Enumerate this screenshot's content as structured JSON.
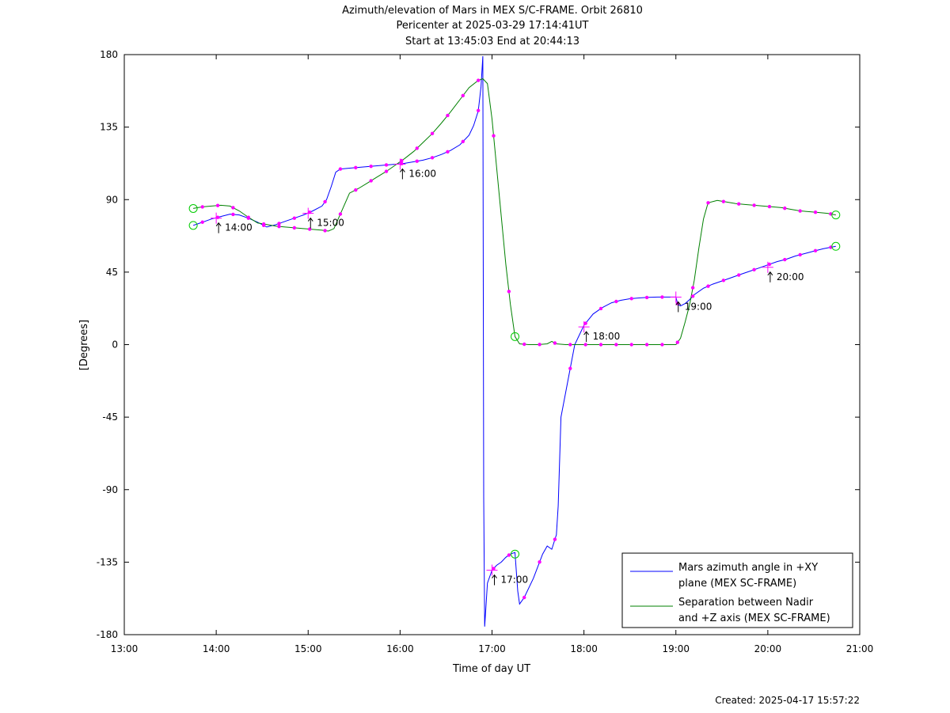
{
  "chart_data": {
    "type": "line",
    "title_lines": [
      "Azimuth/elevation of Mars in MEX S/C-FRAME.  Orbit 26810",
      "Pericenter at 2025-03-29 17:14:41UT",
      "Start at 13:45:03 End at 20:44:13"
    ],
    "xlabel": "Time of day UT",
    "ylabel": "[Degrees]",
    "xlim": [
      13.0,
      21.0
    ],
    "ylim": [
      -180,
      180
    ],
    "x_ticks": [
      13,
      14,
      15,
      16,
      17,
      18,
      19,
      20,
      21
    ],
    "x_tick_labels": [
      "13:00",
      "14:00",
      "15:00",
      "16:00",
      "17:00",
      "18:00",
      "19:00",
      "20:00",
      "21:00"
    ],
    "y_ticks": [
      180,
      135,
      90,
      45,
      0,
      -45,
      -90,
      -135,
      -180
    ],
    "y_tick_labels": [
      "180",
      "135",
      "90",
      "45",
      "0",
      "-45",
      "-90",
      "-135",
      "-180"
    ],
    "grid": false,
    "legend_position": "bottom-right",
    "series": [
      {
        "name": "Mars azimuth angle in +XY plane (MEX SC-FRAME)",
        "legend_lines": [
          "Mars azimuth angle in +XY",
          "plane (MEX SC-FRAME)"
        ],
        "color": "#0000ff",
        "x": [
          13.75,
          13.85,
          13.95,
          14.05,
          14.15,
          14.25,
          14.35,
          14.45,
          14.55,
          14.65,
          14.75,
          14.85,
          14.95,
          15.05,
          15.15,
          15.2,
          15.25,
          15.3,
          15.35,
          15.45,
          15.55,
          15.65,
          15.75,
          15.85,
          15.95,
          16.05,
          16.15,
          16.25,
          16.35,
          16.45,
          16.55,
          16.65,
          16.75,
          16.8,
          16.85,
          16.88,
          16.9,
          16.91,
          16.92,
          16.93,
          16.95,
          17.0,
          17.05,
          17.1,
          17.15,
          17.2,
          17.25,
          17.28,
          17.3,
          17.35,
          17.45,
          17.55,
          17.6,
          17.65,
          17.7,
          17.72,
          17.75,
          17.8,
          17.85,
          17.9,
          18.0,
          18.1,
          18.2,
          18.3,
          18.4,
          18.5,
          18.6,
          18.7,
          18.8,
          18.9,
          19.0,
          19.02,
          19.05,
          19.1,
          19.15,
          19.2,
          19.3,
          19.4,
          19.5,
          19.6,
          19.7,
          19.8,
          19.9,
          20.0,
          20.1,
          20.2,
          20.3,
          20.4,
          20.5,
          20.6,
          20.74
        ],
        "y": [
          74,
          76,
          78,
          79.5,
          81,
          80.5,
          78.5,
          76,
          73,
          74.5,
          76.5,
          78.5,
          80.5,
          83,
          86,
          90,
          98,
          107,
          109,
          109.5,
          110,
          110.5,
          111,
          111.5,
          112,
          112.5,
          113.5,
          114.5,
          116,
          118,
          120.5,
          124,
          130,
          136,
          145,
          160,
          179,
          -95,
          -175,
          -166,
          -148,
          -140,
          -137,
          -135,
          -132,
          -130,
          -129,
          -153,
          -161,
          -157,
          -145,
          -130,
          -125,
          -127,
          -118,
          -100,
          -45,
          -30,
          -15,
          0,
          12,
          19,
          23,
          26,
          27.5,
          28.5,
          29,
          29.3,
          29.5,
          29.5,
          29.5,
          25,
          24,
          25.5,
          28,
          31,
          35,
          37.5,
          39.5,
          41.5,
          43.5,
          45.5,
          47.5,
          49.5,
          51.5,
          53,
          55,
          56.5,
          58,
          59.5,
          61
        ]
      },
      {
        "name": "Separation between Nadir and +Z axis (MEX SC-FRAME)",
        "legend_lines": [
          "Separation between Nadir",
          "and +Z axis (MEX SC-FRAME)"
        ],
        "color": "#008000",
        "x": [
          13.75,
          13.85,
          13.95,
          14.05,
          14.15,
          14.25,
          14.35,
          14.45,
          14.55,
          14.65,
          14.75,
          14.85,
          14.95,
          15.05,
          15.15,
          15.22,
          15.28,
          15.35,
          15.45,
          15.55,
          15.65,
          15.75,
          15.85,
          15.95,
          16.05,
          16.15,
          16.25,
          16.35,
          16.45,
          16.55,
          16.65,
          16.75,
          16.85,
          16.9,
          16.95,
          17.0,
          17.05,
          17.1,
          17.15,
          17.2,
          17.25,
          17.3,
          17.4,
          17.5,
          17.6,
          17.65,
          17.7,
          17.8,
          17.9,
          18.0,
          18.1,
          18.2,
          18.3,
          18.4,
          18.5,
          18.6,
          18.7,
          18.8,
          18.9,
          19.0,
          19.05,
          19.1,
          19.15,
          19.2,
          19.25,
          19.3,
          19.35,
          19.45,
          19.55,
          19.65,
          19.75,
          19.85,
          19.95,
          20.05,
          20.15,
          20.25,
          20.35,
          20.45,
          20.55,
          20.65,
          20.74
        ],
        "y": [
          84.5,
          85.5,
          86,
          86.5,
          86,
          83,
          79,
          75.5,
          74.5,
          73.5,
          73,
          72.5,
          72,
          71.5,
          71,
          70.5,
          72,
          81,
          94,
          97,
          100.5,
          104,
          107.5,
          111.5,
          115.5,
          120,
          125.5,
          131,
          137.5,
          144.5,
          152,
          159.5,
          164,
          165,
          162,
          140,
          110,
          80,
          50,
          25,
          5,
          0.5,
          0,
          0,
          0.5,
          2,
          0.5,
          0,
          0,
          0,
          0,
          0,
          0,
          0,
          0,
          0,
          0,
          0,
          0,
          0,
          4,
          14,
          25,
          40,
          60,
          78,
          88,
          89.5,
          88.5,
          87.5,
          87,
          86.5,
          86,
          85.5,
          85,
          84,
          83,
          82.5,
          82,
          81.5,
          80.5
        ]
      }
    ],
    "time_labels": [
      {
        "x": 14.0,
        "y": 78.5,
        "text": "14:00",
        "series": 0
      },
      {
        "x": 15.0,
        "y": 81.5,
        "text": "15:00",
        "series": 0
      },
      {
        "x": 16.0,
        "y": 112,
        "text": "16:00",
        "series": 0
      },
      {
        "x": 17.0,
        "y": -140,
        "text": "17:00",
        "series": 0
      },
      {
        "x": 18.0,
        "y": 11,
        "text": "18:00",
        "series": 0
      },
      {
        "x": 19.0,
        "y": 29.5,
        "text": "19:00",
        "series": 0
      },
      {
        "x": 20.0,
        "y": 48,
        "text": "20:00",
        "series": 0
      }
    ],
    "circles": [
      {
        "x": 13.75,
        "y": 74,
        "series": 0
      },
      {
        "x": 20.74,
        "y": 61,
        "series": 0
      },
      {
        "x": 17.25,
        "y": -130,
        "series": 0
      },
      {
        "x": 13.75,
        "y": 84.5,
        "series": 1
      },
      {
        "x": 20.74,
        "y": 80.5,
        "series": 1
      },
      {
        "x": 17.25,
        "y": 5,
        "series": 1
      }
    ]
  },
  "footer": {
    "created": "Created: 2025-04-17 15:57:22"
  }
}
